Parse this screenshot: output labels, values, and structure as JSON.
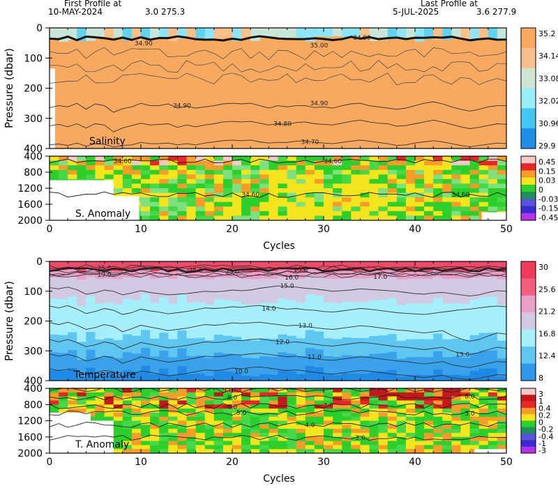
{
  "header": {
    "first_profile_label": "First Profile at",
    "first_profile_date": "10-MAY-2024",
    "first_profile_pos": "3.0 275.3",
    "last_profile_label": "Last Profile at",
    "last_profile_date": "5-JUL-2025",
    "last_profile_pos": "3.6 277.9"
  },
  "colors": {
    "salinity_fill": "#f7a960",
    "salinity_surface": "#5fd3f0",
    "temp_surface": "#f04a6a",
    "temp_pink": "#eaa0c6",
    "temp_lavender": "#d2c9e2",
    "temp_cyan": "#a5effa",
    "temp_lightblue": "#5ec6f0",
    "temp_blue": "#3aa2ea",
    "anom_green": "#2ccf2c",
    "anom_yellow": "#f4e41c",
    "anom_orange": "#f79c28",
    "anom_red": "#e8262a"
  },
  "chart_data": [
    {
      "type": "heatmap",
      "title": "Salinity",
      "xlabel": "",
      "ylabel": "Pressure (dbar)",
      "xlim": [
        0,
        50
      ],
      "ylim": [
        400,
        0
      ],
      "x_ticks": [],
      "y_ticks": [
        "0",
        "100",
        "200",
        "300",
        "400"
      ],
      "colorbar": [
        "35.2",
        "34.14",
        "33.08",
        "32.02",
        "30.96",
        "29.9"
      ],
      "contour_labels": [
        {
          "text": "34.90",
          "x": 14.5,
          "y": 258
        },
        {
          "text": "34.90",
          "x": 29.5,
          "y": 250
        },
        {
          "text": "34.80",
          "x": 25.5,
          "y": 318
        },
        {
          "text": "34.70",
          "x": 28.5,
          "y": 378
        },
        {
          "text": "34.90",
          "x": 10.3,
          "y": 51
        },
        {
          "text": "35.00",
          "x": 29.5,
          "y": 58
        },
        {
          "text": "34.90",
          "x": 34.2,
          "y": 32
        }
      ],
      "isolines": [
        {
          "value": 34.9,
          "depths": [
            265,
            258,
            262,
            250,
            270,
            252,
            258,
            280,
            268,
            262,
            250,
            258,
            258,
            252,
            266,
            260,
            266,
            262,
            258,
            252,
            250,
            252,
            250,
            258,
            266,
            258,
            262,
            258,
            258,
            264,
            262,
            266,
            258,
            252,
            250,
            258,
            262,
            266,
            270,
            266,
            258,
            250,
            245,
            252,
            262,
            270,
            276,
            270,
            262,
            258,
            258
          ]
        },
        {
          "value": 34.8,
          "depths": [
            325,
            320,
            328,
            318,
            332,
            318,
            322,
            345,
            332,
            324,
            316,
            322,
            320,
            318,
            330,
            322,
            328,
            322,
            318,
            312,
            310,
            312,
            310,
            316,
            322,
            318,
            320,
            314,
            312,
            318,
            320,
            322,
            316,
            310,
            306,
            312,
            316,
            318,
            326,
            324,
            318,
            312,
            306,
            312,
            320,
            328,
            334,
            330,
            324,
            318,
            320
          ]
        },
        {
          "value": 34.7,
          "depths": [
            388,
            385,
            390,
            382,
            392,
            384,
            386,
            395,
            390,
            388,
            380,
            384,
            384,
            382,
            388,
            384,
            388,
            382,
            378,
            374,
            372,
            374,
            372,
            378,
            382,
            380,
            380,
            376,
            374,
            380,
            382,
            384,
            380,
            376,
            372,
            376,
            380,
            384,
            390,
            388,
            382,
            378,
            374,
            378,
            384,
            390,
            394,
            390,
            386,
            382,
            384
          ]
        }
      ]
    },
    {
      "type": "heatmap",
      "title": "S. Anomaly",
      "xlabel": "Cycles",
      "ylabel": "",
      "xlim": [
        0,
        50
      ],
      "ylim": [
        2000,
        400
      ],
      "x_ticks": [
        "0",
        "10",
        "20",
        "30",
        "40",
        "50"
      ],
      "y_ticks": [
        "400",
        "800",
        "1200",
        "1600",
        "2000"
      ],
      "colorbar": [
        "0.45",
        "0.15",
        "0.03",
        "0",
        "-0.03",
        "-0.15",
        "-0.45"
      ],
      "contour_labels": [
        {
          "text": "34.60",
          "x": 8,
          "y": 520
        },
        {
          "text": "34.60",
          "x": 31,
          "y": 520
        },
        {
          "text": "34.60",
          "x": 22,
          "y": 1360
        },
        {
          "text": "34.60",
          "x": 45,
          "y": 1360
        }
      ]
    },
    {
      "type": "heatmap",
      "title": "Temperature",
      "xlabel": "",
      "ylabel": "Pressure (dbar)",
      "xlim": [
        0,
        50
      ],
      "ylim": [
        400,
        0
      ],
      "x_ticks": [],
      "y_ticks": [
        "0",
        "100",
        "200",
        "300",
        "400"
      ],
      "colorbar": [
        "30",
        "25.6",
        "21.2",
        "16.8",
        "12.4",
        "8"
      ],
      "contour_labels": [
        {
          "text": "25.0",
          "x": 6,
          "y": 22
        },
        {
          "text": "19.0",
          "x": 6,
          "y": 44
        },
        {
          "text": "25.0",
          "x": 16,
          "y": 30
        },
        {
          "text": "25.0",
          "x": 20,
          "y": 34
        },
        {
          "text": "25.0",
          "x": 27.5,
          "y": 28
        },
        {
          "text": "16.0",
          "x": 26.5,
          "y": 54
        },
        {
          "text": "17.0",
          "x": 36.2,
          "y": 52
        },
        {
          "text": "15.0",
          "x": 26,
          "y": 82
        },
        {
          "text": "14.0",
          "x": 24,
          "y": 158
        },
        {
          "text": "13.0",
          "x": 28,
          "y": 215
        },
        {
          "text": "12.0",
          "x": 25.5,
          "y": 270
        },
        {
          "text": "11.0",
          "x": 29,
          "y": 320
        },
        {
          "text": "13.0",
          "x": 45.2,
          "y": 312
        },
        {
          "text": "10.0",
          "x": 21,
          "y": 368
        }
      ],
      "isolines": [
        {
          "value": 15.0,
          "depths": [
            88,
            92,
            86,
            95,
            110,
            105,
            96,
            100,
            112,
            106,
            98,
            104,
            108,
            112,
            110,
            108,
            104,
            100,
            102,
            100,
            96,
            98,
            96,
            90,
            86,
            82,
            84,
            86,
            90,
            92,
            96,
            100,
            98,
            96,
            92,
            94,
            96,
            98,
            100,
            104,
            108,
            110,
            106,
            104,
            108,
            112,
            116,
            112,
            104,
            98,
            100
          ]
        },
        {
          "value": 14.0,
          "depths": [
            150,
            156,
            148,
            160,
            175,
            168,
            158,
            164,
            178,
            172,
            160,
            166,
            170,
            176,
            172,
            168,
            162,
            156,
            158,
            156,
            152,
            154,
            150,
            148,
            152,
            156,
            160,
            158,
            162,
            164,
            168,
            170,
            166,
            162,
            158,
            160,
            164,
            168,
            172,
            174,
            176,
            178,
            174,
            170,
            166,
            162,
            160,
            156,
            152,
            150,
            152
          ]
        },
        {
          "value": 13.0,
          "depths": [
            205,
            212,
            204,
            214,
            228,
            222,
            212,
            218,
            236,
            226,
            214,
            220,
            226,
            232,
            228,
            224,
            218,
            212,
            214,
            212,
            206,
            208,
            206,
            204,
            208,
            212,
            216,
            214,
            218,
            222,
            226,
            228,
            224,
            220,
            216,
            218,
            222,
            226,
            230,
            232,
            236,
            240,
            236,
            232,
            248,
            260,
            268,
            262,
            250,
            240,
            244
          ]
        },
        {
          "value": 12.0,
          "depths": [
            262,
            270,
            262,
            272,
            286,
            280,
            270,
            276,
            294,
            284,
            272,
            278,
            284,
            290,
            286,
            282,
            276,
            270,
            272,
            270,
            264,
            266,
            262,
            260,
            264,
            268,
            272,
            270,
            274,
            278,
            282,
            284,
            280,
            276,
            272,
            274,
            278,
            282,
            286,
            288,
            292,
            296,
            292,
            288,
            300,
            308,
            312,
            306,
            296,
            288,
            292
          ]
        },
        {
          "value": 11.0,
          "depths": [
            310,
            318,
            312,
            320,
            334,
            328,
            318,
            324,
            342,
            332,
            320,
            326,
            332,
            338,
            334,
            330,
            324,
            318,
            320,
            318,
            312,
            314,
            310,
            308,
            312,
            316,
            320,
            318,
            322,
            326,
            330,
            332,
            328,
            324,
            320,
            322,
            326,
            330,
            334,
            336,
            340,
            344,
            340,
            336,
            346,
            352,
            356,
            350,
            342,
            336,
            338
          ]
        },
        {
          "value": 10.0,
          "depths": [
            360,
            366,
            362,
            368,
            380,
            374,
            366,
            370,
            386,
            378,
            368,
            372,
            378,
            384,
            380,
            376,
            370,
            364,
            366,
            364,
            358,
            360,
            356,
            354,
            358,
            362,
            366,
            364,
            368,
            372,
            376,
            378,
            374,
            370,
            366,
            368,
            372,
            376,
            380,
            382,
            386,
            390,
            386,
            382,
            390,
            394,
            396,
            392,
            386,
            380,
            382
          ]
        }
      ]
    },
    {
      "type": "heatmap",
      "title": "T. Anomaly",
      "xlabel": "Cycles",
      "ylabel": "",
      "xlim": [
        0,
        50
      ],
      "ylim": [
        2000,
        400
      ],
      "x_ticks": [
        "0",
        "10",
        "20",
        "30",
        "40",
        "50"
      ],
      "y_ticks": [
        "400",
        "800",
        "1200",
        "1600",
        "2000"
      ],
      "colorbar": [
        "3",
        "1",
        "0.4",
        "0.2",
        "0",
        "-0.2",
        "-0.4",
        "-1",
        "-3"
      ],
      "contour_labels": [
        {
          "text": "9.0",
          "x": 19.5,
          "y": 440
        },
        {
          "text": "8.0",
          "x": 20,
          "y": 620
        },
        {
          "text": "8.0",
          "x": 46,
          "y": 600
        },
        {
          "text": "7.0",
          "x": 30.5,
          "y": 820
        },
        {
          "text": "6.0",
          "x": 20,
          "y": 860
        },
        {
          "text": "5.0",
          "x": 21,
          "y": 1000
        },
        {
          "text": "5.0",
          "x": 46,
          "y": 1020
        },
        {
          "text": "4.0",
          "x": 28.5,
          "y": 1300
        },
        {
          "text": "3.0",
          "x": 34,
          "y": 1620
        }
      ]
    }
  ]
}
